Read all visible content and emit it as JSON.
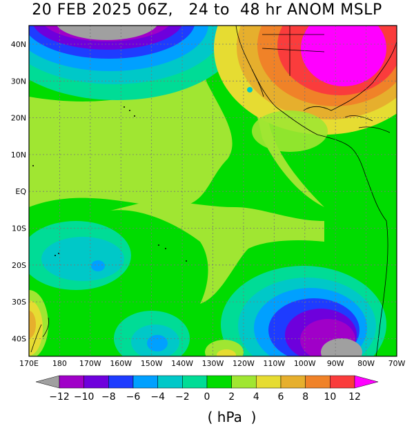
{
  "title": "20 FEB 2025 06Z,   24 to  48 hr ANOM MSLP",
  "map": {
    "lat_labels": [
      "40N",
      "30N",
      "20N",
      "10N",
      "EQ",
      "10S",
      "20S",
      "30S",
      "40S"
    ],
    "lon_labels": [
      "170E",
      "180",
      "170W",
      "160W",
      "150W",
      "140W",
      "130W",
      "120W",
      "110W",
      "100W",
      "90W",
      "80W",
      "70W"
    ],
    "anomaly_regions": [
      {
        "name": "north-pacific-low",
        "min_value": "-12",
        "location": "northwest"
      },
      {
        "name": "us-high",
        "max_value": "12",
        "location": "northeast"
      },
      {
        "name": "south-pacific-low",
        "min_value": "-12",
        "location": "southeast"
      },
      {
        "name": "southwest-high",
        "max_value": "6",
        "location": "southwest"
      }
    ]
  },
  "colorbar": {
    "labels": [
      "−12",
      "−10",
      "−8",
      "−6",
      "−4",
      "−2",
      "0",
      "2",
      "4",
      "6",
      "8",
      "10",
      "12"
    ],
    "colors": [
      "#a0a0a0",
      "#a000c8",
      "#6e00dc",
      "#1e3cff",
      "#00a0ff",
      "#00c8c8",
      "#00dc96",
      "#00dc00",
      "#a0e632",
      "#e6dc32",
      "#e6af2d",
      "#f08228",
      "#fa3c3c",
      "#ff00ff"
    ],
    "unit": "( hPa  )"
  }
}
